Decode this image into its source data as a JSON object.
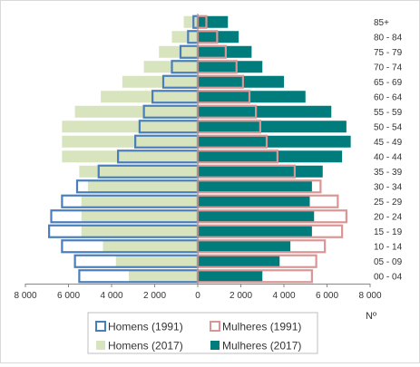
{
  "chart_data": {
    "type": "bar",
    "orientation": "horizontal-population-pyramid",
    "title": "",
    "xlabel": "Nº",
    "ylabel": "",
    "xlim": [
      -8000,
      8000
    ],
    "x_ticks": [
      -8000,
      -6000,
      -4000,
      -2000,
      0,
      2000,
      4000,
      6000,
      8000
    ],
    "x_tick_labels": [
      "8 000",
      "6 000",
      "4 000",
      "2 000",
      "0",
      "2 000",
      "4 000",
      "6 000",
      "8 000"
    ],
    "grid": false,
    "legend_position": "bottom",
    "categories": [
      "00 - 04",
      "05 - 09",
      "10 - 14",
      "15 - 19",
      "20 - 24",
      "25 - 29",
      "30 - 34",
      "35 - 39",
      "40 - 44",
      "45 - 49",
      "50 - 54",
      "55 - 59",
      "60 - 64",
      "65 - 69",
      "70 - 74",
      "75 - 79",
      "80 - 84",
      "85+"
    ],
    "series": [
      {
        "name": "Homens (1991)",
        "side": "left",
        "style": "outline",
        "color": "#4a7ebb",
        "values": [
          5500,
          5700,
          6300,
          6900,
          6800,
          6300,
          5600,
          4600,
          3700,
          2900,
          2700,
          2500,
          2100,
          1600,
          1200,
          800,
          450,
          200
        ]
      },
      {
        "name": "Mulheres (1991)",
        "side": "right",
        "style": "outline",
        "color": "#d99694",
        "values": [
          5300,
          5500,
          5900,
          6700,
          6900,
          6500,
          5700,
          4500,
          3700,
          3200,
          2900,
          2700,
          2400,
          2100,
          1800,
          1300,
          900,
          400
        ]
      },
      {
        "name": "Homens (2017)",
        "side": "left",
        "style": "filled",
        "color": "#d7e4bd",
        "values": [
          3200,
          3800,
          4400,
          5400,
          5400,
          5400,
          5100,
          5500,
          6300,
          6300,
          6300,
          5700,
          4500,
          3500,
          2500,
          1800,
          1200,
          650
        ]
      },
      {
        "name": "Mulheres (2017)",
        "side": "right",
        "style": "filled",
        "color": "#007c7c",
        "values": [
          3000,
          3800,
          4300,
          5300,
          5400,
          5200,
          5300,
          5800,
          6700,
          7100,
          6900,
          6200,
          5000,
          4000,
          3000,
          2500,
          1900,
          1400
        ]
      }
    ]
  }
}
